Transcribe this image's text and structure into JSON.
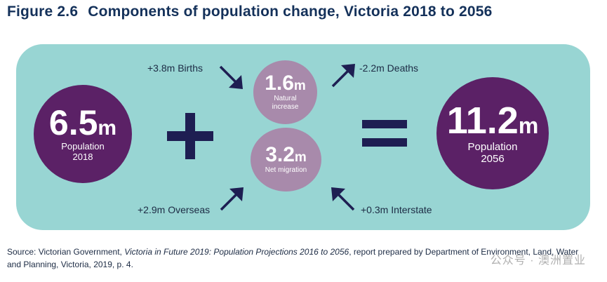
{
  "figure": {
    "number": "Figure 2.6",
    "title": "Components of population change, Victoria 2018 to 2056"
  },
  "start": {
    "value": "6.5",
    "unit": "m",
    "label_line1": "Population",
    "label_line2": "2018"
  },
  "natural": {
    "value": "1.6",
    "unit": "m",
    "label_line1": "Natural",
    "label_line2": "increase"
  },
  "migration": {
    "value": "3.2",
    "unit": "m",
    "label": "Net migration"
  },
  "end": {
    "value": "11.2",
    "unit": "m",
    "label_line1": "Population",
    "label_line2": "2056"
  },
  "flows": {
    "births": "+3.8m Births",
    "deaths": "-2.2m Deaths",
    "overseas": "+2.9m Overseas",
    "interstate": "+0.3m Interstate"
  },
  "source": {
    "prefix": "Source: Victorian Government, ",
    "publication": "Victoria in Future 2019: Population Projections 2016 to 2056",
    "suffix": ", report prepared by Department of Environment, Land, Water and Planning, Victoria, 2019, p. 4."
  },
  "watermark": "公众号 · 澳洲置业",
  "colors": {
    "title": "#14315a",
    "panel": "#98d5d3",
    "dark_circle": "#5b2166",
    "light_circle": "#a88aab",
    "arrows": "#1e1e52"
  }
}
